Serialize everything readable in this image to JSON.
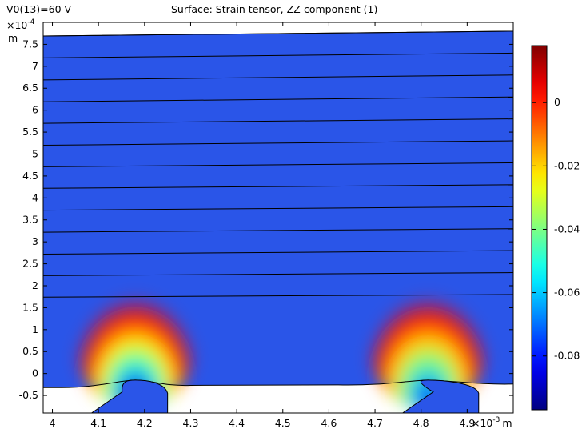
{
  "header": {
    "parameter_label": "V0(13)=60 V",
    "title": "Surface: Strain tensor, ZZ-component (1)"
  },
  "chart_data": {
    "type": "heatmap",
    "title": "Surface: Strain tensor, ZZ-component (1)",
    "x_axis": {
      "unit": "m",
      "multiplier": "×10",
      "exponent": "-3",
      "range": [
        3.98,
        5.0
      ],
      "ticks": [
        4,
        4.1,
        4.2,
        4.3,
        4.4,
        4.5,
        4.6,
        4.7,
        4.8,
        4.9
      ],
      "tick_labels": [
        "4",
        "4.1",
        "4.2",
        "4.3",
        "4.4",
        "4.5",
        "4.6",
        "4.7",
        "4.8",
        "4.9"
      ]
    },
    "y_axis": {
      "unit": "m",
      "multiplier": "×10",
      "exponent": "-4",
      "range": [
        -0.9,
        8.0
      ],
      "ticks": [
        -0.5,
        0,
        0.5,
        1,
        1.5,
        2,
        2.5,
        3,
        3.5,
        4,
        4.5,
        5,
        5.5,
        6,
        6.5,
        7,
        7.5
      ],
      "tick_labels": [
        "-0.5",
        "0",
        "0.5",
        "1",
        "1.5",
        "2",
        "2.5",
        "3",
        "3.5",
        "4",
        "4.5",
        "5",
        "5.5",
        "6",
        "6.5",
        "7",
        "7.5"
      ]
    },
    "colorbar": {
      "colormap": "jet",
      "range": [
        -0.097,
        0.018
      ],
      "ticks": [
        0,
        -0.02,
        -0.04,
        -0.06,
        -0.08
      ],
      "tick_labels": [
        "0",
        "-0.02",
        "-0.04",
        "-0.06",
        "-0.08"
      ]
    },
    "strain_hotspots": [
      {
        "x": 4.18,
        "y": -0.15,
        "peak_value": -0.097
      },
      {
        "x": 4.815,
        "y": -0.15,
        "peak_value": -0.085
      }
    ],
    "layers": {
      "count": 13,
      "x_span": [
        3.98,
        5.0
      ],
      "bottom_interface_y": -0.32,
      "left_edge_y": [
        1.74,
        2.23,
        2.72,
        3.22,
        3.72,
        4.22,
        4.71,
        5.2,
        5.7,
        6.19,
        6.69,
        7.19,
        7.69
      ],
      "right_edge_y": [
        1.8,
        2.3,
        2.8,
        3.3,
        3.8,
        4.3,
        4.8,
        5.3,
        5.8,
        6.3,
        6.8,
        7.3,
        7.8
      ]
    },
    "electrodes": [
      {
        "x_left": 4.08,
        "x_right": 4.25,
        "top_y": -0.15,
        "crown_x": 4.18
      },
      {
        "x_left": 4.755,
        "x_right": 4.925,
        "top_y": -0.15,
        "crown_x": 4.815
      }
    ]
  }
}
